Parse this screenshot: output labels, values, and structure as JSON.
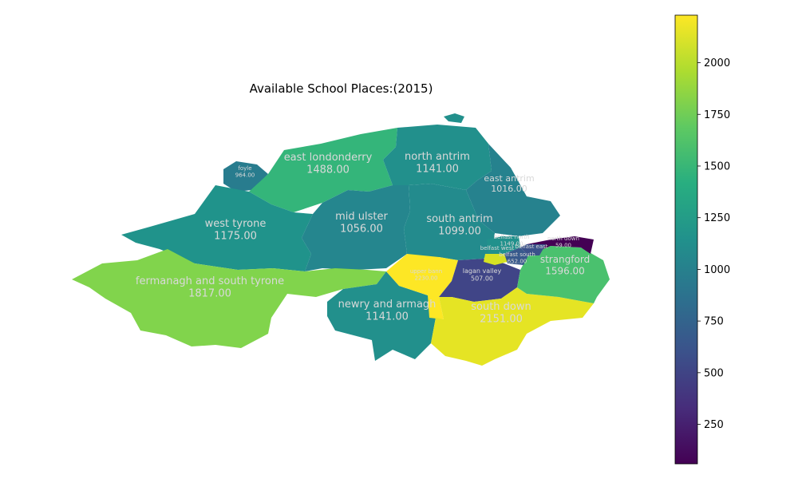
{
  "title": "Available School Places:(2015)",
  "colormap": "viridis",
  "chart_data": {
    "type": "choropleth",
    "title": "Available School Places:(2015)",
    "value_range": [
      59,
      2230
    ],
    "colorbar_ticks": [
      250,
      500,
      750,
      1000,
      1250,
      1500,
      1750,
      2000
    ],
    "regions": [
      {
        "name": "foyle",
        "value": 964.0,
        "label": "964.00"
      },
      {
        "name": "east londonderry",
        "value": 1488.0,
        "label": "1488.00"
      },
      {
        "name": "north antrim",
        "value": 1141.0,
        "label": "1141.00"
      },
      {
        "name": "east antrim",
        "value": 1016.0,
        "label": "1016.00"
      },
      {
        "name": "west tyrone",
        "value": 1175.0,
        "label": "1175.00"
      },
      {
        "name": "mid ulster",
        "value": 1056.0,
        "label": "1056.00"
      },
      {
        "name": "south antrim",
        "value": 1099.0,
        "label": "1099.00"
      },
      {
        "name": "fermanagh and south tyrone",
        "value": 1817.0,
        "label": "1817.00"
      },
      {
        "name": "newry and armagh",
        "value": 1141.0,
        "label": "1141.00"
      },
      {
        "name": "upper bann",
        "value": 2230.0,
        "label": "2230.00"
      },
      {
        "name": "lagan valley",
        "value": 507.0,
        "label": "507.00"
      },
      {
        "name": "south down",
        "value": 2151.0,
        "label": "2151.00"
      },
      {
        "name": "strangford",
        "value": 1596.0,
        "label": "1596.00"
      },
      {
        "name": "north down",
        "value": 59.0,
        "label": "59.00"
      },
      {
        "name": "belfast north",
        "value": 1149.0,
        "label": "1149.00"
      },
      {
        "name": "belfast west",
        "value": 2100.0,
        "label": ""
      },
      {
        "name": "belfast south",
        "value": 652.0,
        "label": "652.00"
      },
      {
        "name": "belfast east",
        "value": 600.0,
        "label": ""
      }
    ]
  }
}
